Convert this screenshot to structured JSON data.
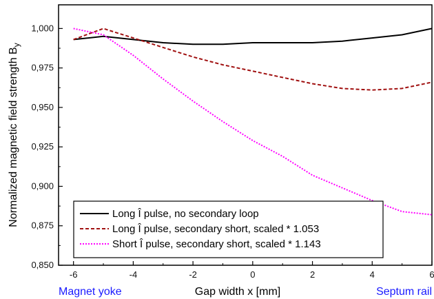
{
  "chart_data": {
    "type": "line",
    "xlabel": "Gap width x [mm]",
    "ylabel_main": "Normalized magnetic field strength B",
    "ylabel_sub": "y",
    "xlim": [
      -6.5,
      6
    ],
    "ylim": [
      0.85,
      1.015
    ],
    "xticks": [
      -6,
      -4,
      -2,
      0,
      2,
      4,
      6
    ],
    "xtick_labels": [
      "-6",
      "-4",
      "-2",
      "0",
      "2",
      "4",
      "6"
    ],
    "yticks": [
      0.85,
      0.875,
      0.9,
      0.925,
      0.95,
      0.975,
      1.0
    ],
    "ytick_labels": [
      "0,850",
      "0,875",
      "0,900",
      "0,925",
      "0,950",
      "0,975",
      "1,000"
    ],
    "left_end_label": "Magnet yoke",
    "right_end_label": "Septum rail",
    "end_label_color": "#1a1aff",
    "legend_position": "bottom-left",
    "series": [
      {
        "name": "Long Î pulse, no secondary loop",
        "color": "#000000",
        "dash": "solid",
        "x": [
          -6,
          -5,
          -4,
          -3,
          -2,
          -1,
          0,
          1,
          2,
          3,
          4,
          5,
          6
        ],
        "y": [
          0.993,
          0.995,
          0.993,
          0.991,
          0.99,
          0.99,
          0.991,
          0.991,
          0.991,
          0.992,
          0.994,
          0.996,
          1.0
        ]
      },
      {
        "name": "Long Î pulse, secondary short, scaled * 1.053",
        "color": "#a01010",
        "dash": "dashed",
        "x": [
          -6,
          -5,
          -4,
          -3,
          -2,
          -1,
          0,
          1,
          2,
          3,
          4,
          5,
          6
        ],
        "y": [
          0.993,
          1.0,
          0.994,
          0.988,
          0.982,
          0.977,
          0.973,
          0.969,
          0.965,
          0.962,
          0.961,
          0.962,
          0.966
        ]
      },
      {
        "name": "Short Î pulse, secondary short, scaled * 1.143",
        "color": "#ff00ff",
        "dash": "dotted",
        "x": [
          -6,
          -5,
          -4,
          -3,
          -2,
          -1,
          0,
          1,
          2,
          3,
          4,
          5,
          6
        ],
        "y": [
          1.0,
          0.996,
          0.983,
          0.968,
          0.954,
          0.941,
          0.929,
          0.919,
          0.907,
          0.899,
          0.891,
          0.884,
          0.882
        ]
      }
    ]
  }
}
